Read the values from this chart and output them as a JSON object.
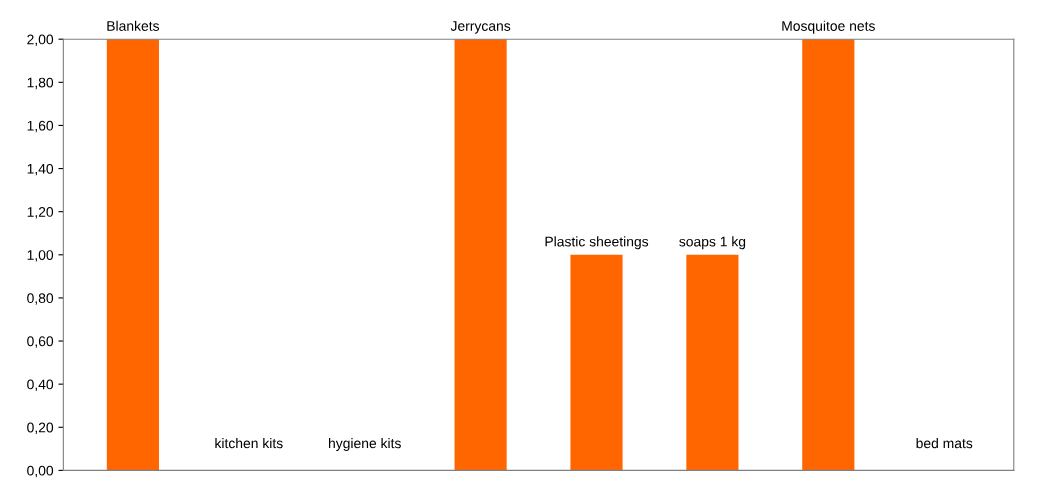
{
  "chart_data": {
    "type": "bar",
    "categories": [
      "Blankets",
      "kitchen kits",
      "hygiene kits",
      "Jerrycans",
      "Plastic sheetings",
      "soaps 1 kg",
      "Mosquitoe nets",
      "bed mats"
    ],
    "values": [
      2,
      0,
      0,
      2,
      1,
      1,
      2,
      0
    ],
    "color": "#ff6600",
    "ylim": [
      0,
      2
    ],
    "yticks": [
      {
        "value": 0,
        "label": "0,00"
      },
      {
        "value": 0.2,
        "label": "0,20"
      },
      {
        "value": 0.4,
        "label": "0,40"
      },
      {
        "value": 0.6,
        "label": "0,60"
      },
      {
        "value": 0.8,
        "label": "0,80"
      },
      {
        "value": 1.0,
        "label": "1,00"
      },
      {
        "value": 1.2,
        "label": "1,20"
      },
      {
        "value": 1.4,
        "label": "1,40"
      },
      {
        "value": 1.6,
        "label": "1,60"
      },
      {
        "value": 1.8,
        "label": "1,80"
      },
      {
        "value": 2.0,
        "label": "2,00"
      }
    ],
    "grid": false,
    "legend": false
  }
}
